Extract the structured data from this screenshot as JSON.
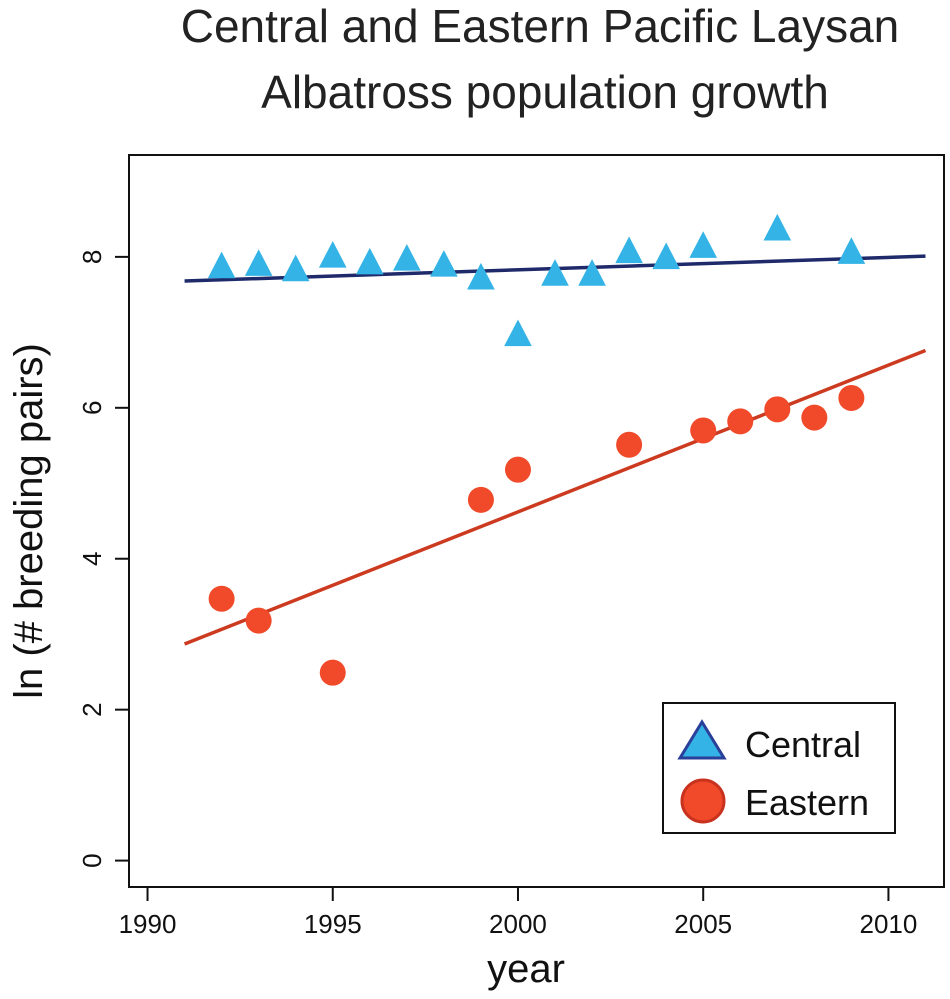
{
  "chart_data": {
    "type": "scatter",
    "title_lines": [
      "Central and Eastern Pacific Laysan",
      "Albatross population growth"
    ],
    "xlabel": "year",
    "ylabel": "ln (# breeding pairs)",
    "xlim": [
      1989.5,
      2011.5
    ],
    "ylim": [
      -0.35,
      9.35
    ],
    "xticks": [
      1990,
      1995,
      2000,
      2005,
      2010
    ],
    "yticks": [
      0,
      2,
      4,
      6,
      8
    ],
    "legend_position": "bottom-right",
    "series": [
      {
        "name": "Central",
        "marker": "triangle",
        "color": "#33b3e6",
        "edge_color": "#2a3f9a",
        "line_color": "#1e2a6a",
        "points": [
          [
            1992,
            7.85
          ],
          [
            1993,
            7.88
          ],
          [
            1994,
            7.81
          ],
          [
            1995,
            7.99
          ],
          [
            1996,
            7.9
          ],
          [
            1997,
            7.95
          ],
          [
            1998,
            7.87
          ],
          [
            1999,
            7.7
          ],
          [
            2000,
            6.95
          ],
          [
            2001,
            7.75
          ],
          [
            2002,
            7.75
          ],
          [
            2003,
            8.05
          ],
          [
            2004,
            7.97
          ],
          [
            2005,
            8.12
          ],
          [
            2007,
            8.35
          ],
          [
            2009,
            8.04
          ]
        ],
        "fit": [
          [
            1991,
            7.68
          ],
          [
            2011,
            8.01
          ]
        ]
      },
      {
        "name": "Eastern",
        "marker": "circle",
        "color": "#f04a2a",
        "edge_color": "#c8321e",
        "line_color": "#cc3a20",
        "points": [
          [
            1992,
            3.47
          ],
          [
            1993,
            3.18
          ],
          [
            1995,
            2.49
          ],
          [
            1999,
            4.78
          ],
          [
            2000,
            5.18
          ],
          [
            2003,
            5.51
          ],
          [
            2005,
            5.7
          ],
          [
            2006,
            5.82
          ],
          [
            2007,
            5.98
          ],
          [
            2008,
            5.87
          ],
          [
            2009,
            6.13
          ]
        ],
        "fit": [
          [
            1991,
            2.87
          ],
          [
            2011,
            6.76
          ]
        ]
      }
    ]
  }
}
